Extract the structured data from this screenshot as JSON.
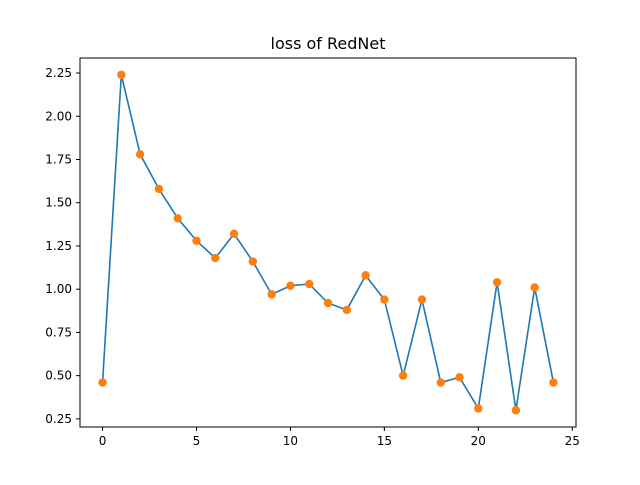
{
  "chart_data": {
    "type": "line",
    "title": "loss of RedNet",
    "xlabel": "",
    "ylabel": "",
    "x": [
      0,
      1,
      2,
      3,
      4,
      5,
      6,
      7,
      8,
      9,
      10,
      11,
      12,
      13,
      14,
      15,
      16,
      17,
      18,
      19,
      20,
      21,
      22,
      23,
      24
    ],
    "series": [
      {
        "values": [
          0.46,
          2.24,
          1.78,
          1.58,
          1.41,
          1.28,
          1.18,
          1.32,
          1.16,
          0.97,
          1.02,
          1.03,
          0.92,
          0.88,
          1.08,
          0.94,
          0.5,
          0.94,
          0.46,
          0.49,
          0.31,
          1.04,
          0.3,
          1.01,
          0.46
        ],
        "line_color": "#1f77b4",
        "marker_color": "#ff7f0e"
      }
    ],
    "xlim": [
      -1.2,
      25.2
    ],
    "ylim": [
      0.203,
      2.337
    ],
    "xticks": [
      0,
      5,
      10,
      15,
      20,
      25
    ],
    "xtick_labels": [
      "0",
      "5",
      "10",
      "15",
      "20",
      "25"
    ],
    "yticks": [
      0.25,
      0.5,
      0.75,
      1.0,
      1.25,
      1.5,
      1.75,
      2.0,
      2.25
    ],
    "ytick_labels": [
      "0.25",
      "0.50",
      "0.75",
      "1.00",
      "1.25",
      "1.50",
      "1.75",
      "2.00",
      "2.25"
    ],
    "grid": false,
    "legend": false
  }
}
